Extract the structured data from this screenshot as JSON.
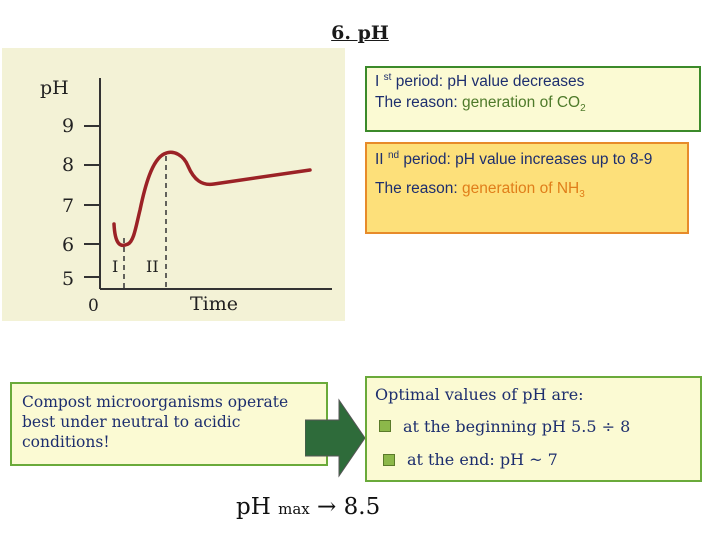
{
  "title": "6. pH",
  "diagram": {
    "y_axis_label": "pH",
    "x_axis_label": "Time",
    "y_ticks": [
      "9",
      "8",
      "7",
      "6",
      "5"
    ],
    "origin": "0",
    "period_labels": [
      "I",
      "II"
    ],
    "curve_color": "#9b2226"
  },
  "period1": {
    "roman": "I",
    "sup": "st",
    "text_a": " period: pH value decreases",
    "reason_prefix": "The reason: ",
    "reason_hl": "generation of CO",
    "reason_sub": "2"
  },
  "period2": {
    "roman": "II",
    "sup": "nd",
    "text_a": " period: pH value increases up to 8-9",
    "reason_prefix": "The reason: ",
    "reason_hl": "generation of NH",
    "reason_sub": "3"
  },
  "compost_note": "Compost microorganisms operate best under neutral to acidic conditions!",
  "optimal": {
    "heading": "Optimal values of pH are:",
    "items": [
      "at the beginning  pH 5.5 ÷ 8",
      "at the end: pH ~ 7"
    ]
  },
  "ph_max": {
    "base": "pH",
    "sub": "max",
    "value": " → 8.5"
  },
  "colors": {
    "title": "#1a1a1a",
    "box_text": "#1d2e6e",
    "green_border": "#3b8a2a",
    "orange_border": "#e78b2a",
    "arrow_fill": "#2e6b3a"
  }
}
